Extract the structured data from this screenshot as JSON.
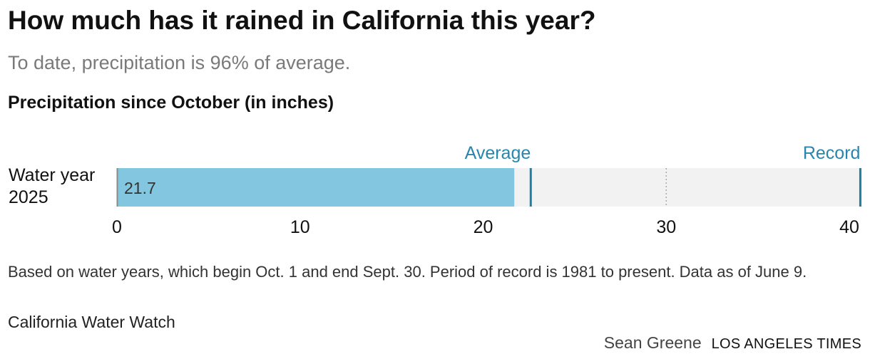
{
  "header": {
    "title": "How much has it rained in California this year?",
    "subtitle": "To date, precipitation is 96% of average."
  },
  "chart_data": {
    "type": "bar",
    "title": "Precipitation since October (in inches)",
    "orientation": "horizontal",
    "categories": [
      "Water year\n2025"
    ],
    "category_lines": [
      "Water year",
      "2025"
    ],
    "values": [
      21.7
    ],
    "value_labels": [
      "21.7"
    ],
    "xlim": [
      0,
      40.7
    ],
    "xticks": [
      0,
      10,
      20,
      30,
      40
    ],
    "xtick_labels": [
      "0",
      "10",
      "20",
      "30",
      "40"
    ],
    "reference_lines": [
      {
        "name": "Average",
        "value": 22.6,
        "style": "solid"
      },
      {
        "name": "Record",
        "value": 40.6,
        "style": "solid"
      }
    ],
    "gridlines": [
      30
    ],
    "colors": {
      "bar": "#82c6df",
      "reference": "#1f7ea4",
      "reference_label": "#2a85ad",
      "track": "#f2f2f2",
      "grid": "#aaaaaa",
      "baseline": "#8a8a8a"
    }
  },
  "footer": {
    "note": "Based on water years, which begin Oct. 1 and end Sept. 30. Period of record is 1981 to present. Data as of June 9.",
    "source": "California Water Watch",
    "byline": "Sean Greene",
    "organization": "LOS ANGELES TIMES"
  }
}
